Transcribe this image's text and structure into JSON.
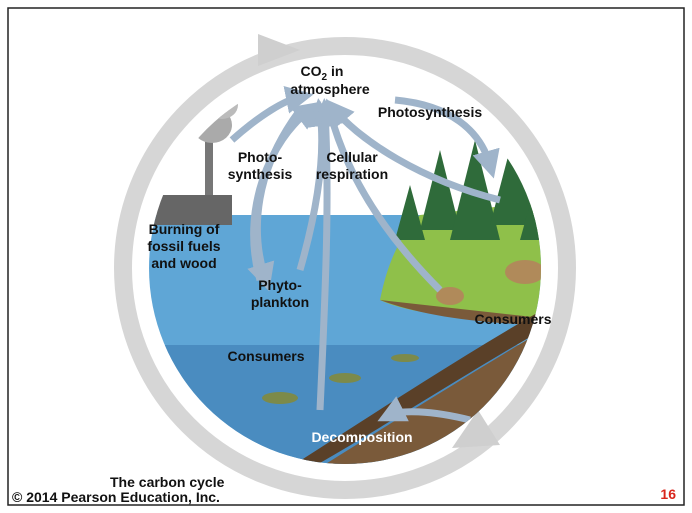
{
  "co2_label": {
    "main": "CO",
    "sub": "2",
    "rest": " in",
    "line2": "atmosphere"
  },
  "labels": [
    {
      "lines": [
        "Photosynthesis"
      ]
    },
    {
      "lines": [
        "Photo-",
        "synthesis"
      ]
    },
    {
      "lines": [
        "Cellular",
        "respiration"
      ]
    },
    {
      "lines": [
        "Burning of",
        "fossil fuels",
        "and wood"
      ]
    },
    {
      "lines": [
        "Phyto-",
        "plankton"
      ]
    },
    {
      "lines": [
        "Consumers"
      ]
    },
    {
      "lines": [
        "Consumers"
      ]
    },
    {
      "lines": [
        "Decomposition"
      ]
    }
  ],
  "caption": "The carbon cycle",
  "copyright": "© 2014 Pearson Education, Inc.",
  "slide_number": "16"
}
